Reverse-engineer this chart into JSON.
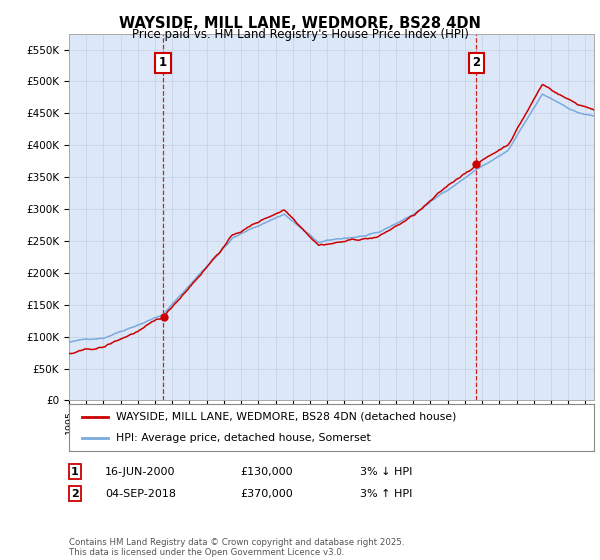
{
  "title": "WAYSIDE, MILL LANE, WEDMORE, BS28 4DN",
  "subtitle": "Price paid vs. HM Land Registry's House Price Index (HPI)",
  "ylabel_ticks": [
    "£0",
    "£50K",
    "£100K",
    "£150K",
    "£200K",
    "£250K",
    "£300K",
    "£350K",
    "£400K",
    "£450K",
    "£500K",
    "£550K"
  ],
  "ytick_vals": [
    0,
    50000,
    100000,
    150000,
    200000,
    250000,
    300000,
    350000,
    400000,
    450000,
    500000,
    550000
  ],
  "ylim": [
    0,
    575000
  ],
  "xlim_start": 1995.0,
  "xlim_end": 2025.5,
  "marker1_x": 2000.46,
  "marker1_y": 130000,
  "marker2_x": 2018.67,
  "marker2_y": 370000,
  "legend_line1": "WAYSIDE, MILL LANE, WEDMORE, BS28 4DN (detached house)",
  "legend_line2": "HPI: Average price, detached house, Somerset",
  "footer": "Contains HM Land Registry data © Crown copyright and database right 2025.\nThis data is licensed under the Open Government Licence v3.0.",
  "line_color_red": "#cc0000",
  "line_color_blue": "#7aaadd",
  "grid_color": "#c8d4e8",
  "bg_color": "#ffffff",
  "plot_bg_color": "#dce8f8",
  "vline_color": "#cc0000",
  "marker_box_color": "#cc0000"
}
